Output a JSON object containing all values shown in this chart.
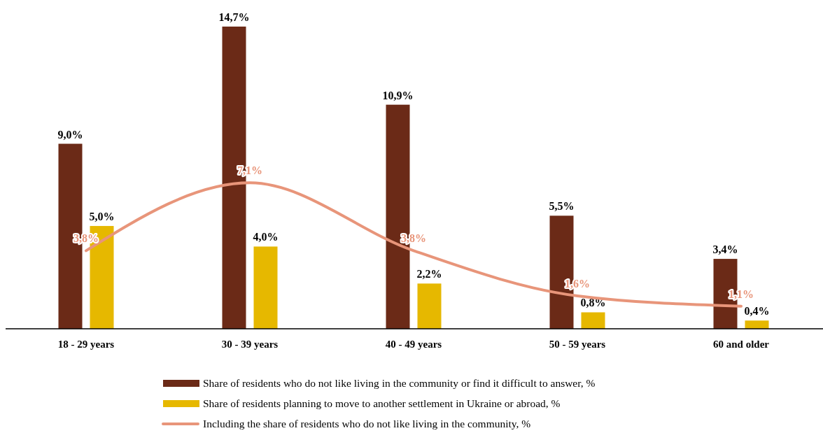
{
  "chart_data": {
    "type": "bar",
    "categories": [
      "18 - 29 years",
      "30 - 39 years",
      "40 - 49 years",
      "50 - 59 years",
      "60 and older"
    ],
    "series": [
      {
        "name": "Share of residents who do not like living in the community or find it difficult to answer, %",
        "color": "#6b2a17",
        "values": [
          9.0,
          14.7,
          10.9,
          5.5,
          3.4
        ],
        "value_labels": [
          "9,0%",
          "14,7%",
          "10,9%",
          "5,5%",
          "3,4%"
        ]
      },
      {
        "name": "Share of residents planning to move to another settlement in Ukraine or abroad, %",
        "color": "#e6b800",
        "values": [
          5.0,
          4.0,
          2.2,
          0.8,
          0.4
        ],
        "value_labels": [
          "5,0%",
          "4,0%",
          "2,2%",
          "0,8%",
          "0,4%"
        ]
      },
      {
        "name": "Including the share of residents who do not like living in the community, %",
        "type": "line",
        "color": "#e8957a",
        "values": [
          3.8,
          7.1,
          3.8,
          1.6,
          1.1
        ],
        "value_labels": [
          "3,8%",
          "7,1%",
          "3,8%",
          "1,6%",
          "1,1%"
        ]
      }
    ],
    "legend": "bottom"
  }
}
